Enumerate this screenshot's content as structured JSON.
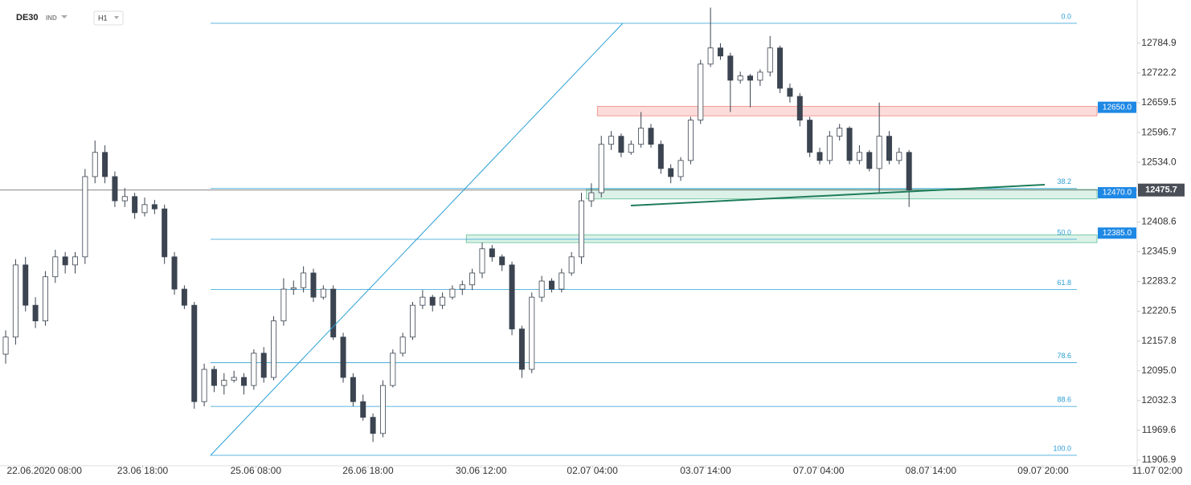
{
  "chart_data": {
    "type": "candlestick",
    "symbol": "DE30",
    "market": "IND",
    "interval": "H1",
    "up_color": "#ffffff",
    "down_color": "#3b4450",
    "ohlc": [
      [
        12130,
        12180,
        12110,
        12166
      ],
      [
        12166,
        12330,
        12150,
        12318
      ],
      [
        12318,
        12335,
        12220,
        12233
      ],
      [
        12233,
        12250,
        12185,
        12200
      ],
      [
        12200,
        12305,
        12190,
        12293
      ],
      [
        12293,
        12350,
        12280,
        12335
      ],
      [
        12335,
        12345,
        12300,
        12318
      ],
      [
        12318,
        12345,
        12300,
        12335
      ],
      [
        12335,
        12520,
        12320,
        12504
      ],
      [
        12504,
        12580,
        12490,
        12555
      ],
      [
        12555,
        12570,
        12490,
        12504
      ],
      [
        12504,
        12515,
        12440,
        12453
      ],
      [
        12453,
        12480,
        12440,
        12462
      ],
      [
        12462,
        12470,
        12415,
        12428
      ],
      [
        12428,
        12460,
        12420,
        12445
      ],
      [
        12445,
        12455,
        12425,
        12436
      ],
      [
        12436,
        12445,
        12320,
        12335
      ],
      [
        12335,
        12345,
        12255,
        12267
      ],
      [
        12267,
        12275,
        12225,
        12233
      ],
      [
        12233,
        12240,
        12015,
        12030
      ],
      [
        12030,
        12110,
        12020,
        12098
      ],
      [
        12098,
        12105,
        12050,
        12064
      ],
      [
        12064,
        12090,
        12045,
        12075
      ],
      [
        12075,
        12095,
        12070,
        12081
      ],
      [
        12081,
        12090,
        12045,
        12064
      ],
      [
        12064,
        12140,
        12055,
        12132
      ],
      [
        12132,
        12145,
        12070,
        12081
      ],
      [
        12081,
        12210,
        12075,
        12200
      ],
      [
        12200,
        12290,
        12190,
        12267
      ],
      [
        12267,
        12285,
        12255,
        12270
      ],
      [
        12270,
        12315,
        12260,
        12301
      ],
      [
        12301,
        12310,
        12240,
        12250
      ],
      [
        12250,
        12275,
        12245,
        12267
      ],
      [
        12267,
        12275,
        12160,
        12166
      ],
      [
        12166,
        12175,
        12070,
        12081
      ],
      [
        12081,
        12090,
        12020,
        12030
      ],
      [
        12030,
        12045,
        11990,
        11997
      ],
      [
        11997,
        12005,
        11945,
        11963
      ],
      [
        11963,
        12075,
        11955,
        12064
      ],
      [
        12064,
        12140,
        12060,
        12132
      ],
      [
        12132,
        12175,
        12125,
        12166
      ],
      [
        12166,
        12240,
        12160,
        12233
      ],
      [
        12233,
        12265,
        12225,
        12250
      ],
      [
        12250,
        12255,
        12220,
        12233
      ],
      [
        12233,
        12260,
        12225,
        12250
      ],
      [
        12250,
        12275,
        12245,
        12267
      ],
      [
        12267,
        12285,
        12255,
        12276
      ],
      [
        12276,
        12310,
        12265,
        12301
      ],
      [
        12301,
        12365,
        12290,
        12352
      ],
      [
        12352,
        12360,
        12325,
        12335
      ],
      [
        12335,
        12340,
        12305,
        12318
      ],
      [
        12318,
        12325,
        12170,
        12183
      ],
      [
        12183,
        12190,
        12080,
        12098
      ],
      [
        12098,
        12260,
        12090,
        12250
      ],
      [
        12250,
        12295,
        12240,
        12284
      ],
      [
        12284,
        12290,
        12260,
        12267
      ],
      [
        12267,
        12310,
        12260,
        12301
      ],
      [
        12301,
        12345,
        12295,
        12335
      ],
      [
        12335,
        12470,
        12320,
        12453
      ],
      [
        12453,
        12490,
        12440,
        12470
      ],
      [
        12470,
        12590,
        12460,
        12572
      ],
      [
        12572,
        12600,
        12560,
        12589
      ],
      [
        12589,
        12595,
        12545,
        12555
      ],
      [
        12555,
        12580,
        12550,
        12572
      ],
      [
        12572,
        12640,
        12565,
        12606
      ],
      [
        12606,
        12615,
        12565,
        12572
      ],
      [
        12572,
        12580,
        12510,
        12521
      ],
      [
        12521,
        12530,
        12490,
        12504
      ],
      [
        12504,
        12545,
        12495,
        12538
      ],
      [
        12538,
        12630,
        12530,
        12623
      ],
      [
        12623,
        12750,
        12615,
        12741
      ],
      [
        12741,
        12860,
        12735,
        12775
      ],
      [
        12775,
        12785,
        12750,
        12758
      ],
      [
        12758,
        12765,
        12640,
        12707
      ],
      [
        12707,
        12725,
        12700,
        12716
      ],
      [
        12716,
        12720,
        12650,
        12707
      ],
      [
        12707,
        12730,
        12695,
        12724
      ],
      [
        12724,
        12800,
        12715,
        12775
      ],
      [
        12775,
        12780,
        12680,
        12690
      ],
      [
        12690,
        12700,
        12660,
        12673
      ],
      [
        12673,
        12680,
        12610,
        12623
      ],
      [
        12623,
        12630,
        12545,
        12555
      ],
      [
        12555,
        12565,
        12530,
        12538
      ],
      [
        12538,
        12600,
        12530,
        12589
      ],
      [
        12589,
        12615,
        12580,
        12606
      ],
      [
        12606,
        12610,
        12530,
        12538
      ],
      [
        12538,
        12570,
        12530,
        12555
      ],
      [
        12555,
        12560,
        12515,
        12521
      ],
      [
        12521,
        12660,
        12470,
        12589
      ],
      [
        12589,
        12600,
        12530,
        12538
      ],
      [
        12538,
        12565,
        12530,
        12555
      ],
      [
        12555,
        12560,
        12440,
        12475.7
      ]
    ],
    "xlim": [
      -0.57,
      119.4
    ],
    "xticks": [
      {
        "value": 3.9,
        "label": "22.06.2020 08:00"
      },
      {
        "value": 13.8,
        "label": "23.06 18:00"
      },
      {
        "value": 25.2,
        "label": "25.06 08:00"
      },
      {
        "value": 36.5,
        "label": "26.06 18:00"
      },
      {
        "value": 47.9,
        "label": "30.06 12:00"
      },
      {
        "value": 59.1,
        "label": "02.07 04:00"
      },
      {
        "value": 70.5,
        "label": "03.07 14:00"
      },
      {
        "value": 81.9,
        "label": "07.07 04:00"
      },
      {
        "value": 93.2,
        "label": "08.07 14:00"
      },
      {
        "value": 104.5,
        "label": "09.07 20:00"
      },
      {
        "value": 116.0,
        "label": "11.07 02:00"
      }
    ],
    "ylim": [
      11895,
      12876
    ],
    "yticks": [
      12784.9,
      12722.2,
      12659.5,
      12596.7,
      {
        "value": 12534,
        "label": "12534.0"
      },
      12408.6,
      12345.9,
      12283.2,
      12220.5,
      12157.8,
      {
        "value": 12095,
        "label": "12095.0"
      },
      12032.3,
      11969.6,
      11906.9
    ],
    "fib_color": "#2a9fd6",
    "fib_levels": [
      {
        "label": "0.0",
        "price": 12827
      },
      {
        "label": "38.2",
        "price": 12479
      },
      {
        "label": "50.0",
        "price": 12372
      },
      {
        "label": "61.8",
        "price": 12266
      },
      {
        "label": "78.6",
        "price": 12112
      },
      {
        "label": "88.6",
        "price": 12020
      },
      {
        "label": "100.0",
        "price": 11917
      }
    ],
    "zones": [
      {
        "level": {
          "value": 12650,
          "label": "12650.0"
        },
        "high": 12652,
        "low": 12632,
        "start": 59.6,
        "fill": "#fbdcda",
        "stroke": "#f08a84"
      },
      {
        "level": {
          "value": 12470,
          "label": "12470.0"
        },
        "high": 12477,
        "low": 12457,
        "start": 58.5,
        "fill": "#dcf2e8",
        "stroke": "#5cbf95"
      },
      {
        "level": {
          "value": 12385,
          "label": "12385.0"
        },
        "high": 12381,
        "low": 12365,
        "start": 46.4,
        "fill": "#dcf2e8",
        "stroke": "#5cbf95"
      }
    ],
    "badge_color": "#1e88e5",
    "last_price": 12475.7,
    "last_price_color": "#4a4f57"
  }
}
